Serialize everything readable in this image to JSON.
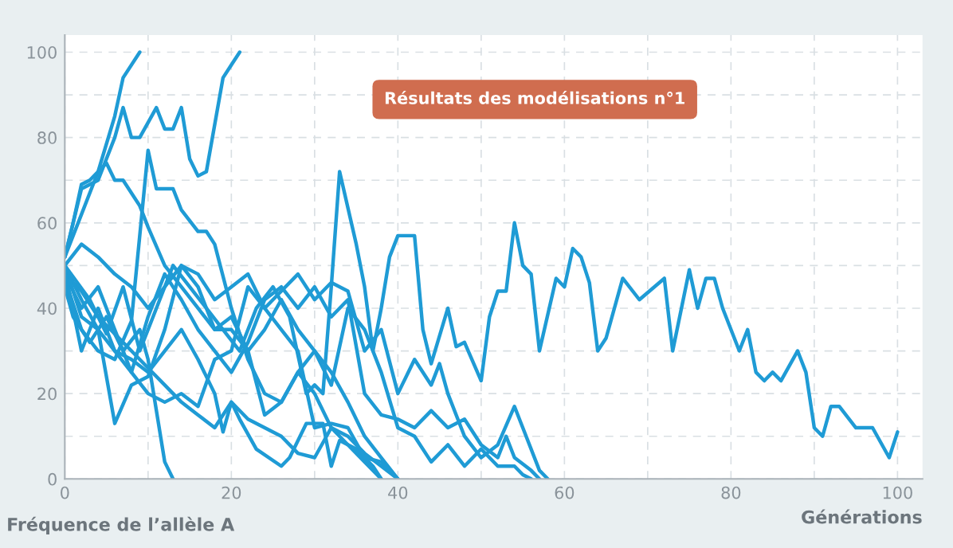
{
  "chart_data": {
    "type": "line",
    "xlabel": "Générations",
    "ylabel": "Fréquence de l’allèle A",
    "annotations": [
      "Résultats des modélisations n°1"
    ],
    "xlim": [
      0,
      103
    ],
    "ylim": [
      0,
      104
    ],
    "xticks": [
      0,
      {
        "value": 10,
        "label": null
      },
      20,
      {
        "value": 30,
        "label": null
      },
      40,
      {
        "value": 50,
        "label": null
      },
      60,
      {
        "value": 70,
        "label": null
      },
      80,
      {
        "value": 90,
        "label": null
      },
      100
    ],
    "yticks": [
      0,
      {
        "value": 10,
        "label": null
      },
      20,
      {
        "value": 30,
        "label": null
      },
      40,
      {
        "value": 50,
        "label": null
      },
      60,
      {
        "value": 70,
        "label": null
      },
      80,
      {
        "value": 90,
        "label": null
      },
      100
    ],
    "grid": true,
    "marker": "none",
    "line_style": "solid",
    "series": [
      {
        "color": "#1f9bd5",
        "x": [
          0,
          2,
          4,
          6,
          7,
          9
        ],
        "values": [
          52,
          62,
          72,
          85,
          94,
          100
        ]
      },
      {
        "color": "#1f9bd5",
        "x": [
          0,
          2,
          4,
          6,
          7,
          8,
          9,
          11,
          12,
          13,
          14,
          15,
          16,
          17,
          19,
          20,
          21
        ],
        "values": [
          52,
          68,
          70,
          80,
          87,
          80,
          80,
          87,
          82,
          82,
          87,
          75,
          71,
          72,
          94,
          97,
          100
        ]
      },
      {
        "color": "#1f9bd5",
        "x": [
          0,
          2,
          4,
          6,
          8,
          10,
          11,
          13,
          14,
          16,
          17,
          18,
          20,
          22,
          24,
          26,
          28,
          30,
          32,
          34,
          36,
          38
        ],
        "values": [
          47,
          35,
          30,
          28,
          37,
          77,
          68,
          68,
          63,
          58,
          58,
          55,
          40,
          28,
          20,
          18,
          25,
          20,
          12,
          8,
          4,
          0
        ]
      },
      {
        "color": "#1f9bd5",
        "x": [
          0,
          1,
          2,
          3,
          5,
          6,
          7,
          9,
          10,
          12,
          14,
          16,
          18,
          20,
          22,
          24,
          26,
          28,
          30,
          32,
          34,
          36,
          38,
          40
        ],
        "values": [
          52,
          60,
          69,
          70,
          74,
          70,
          70,
          64,
          59,
          50,
          45,
          40,
          35,
          38,
          30,
          35,
          42,
          35,
          30,
          25,
          18,
          10,
          5,
          0
        ]
      },
      {
        "color": "#1f9bd5",
        "x": [
          0,
          1,
          3,
          5,
          7,
          9,
          10,
          11,
          12,
          13
        ],
        "values": [
          45,
          38,
          32,
          38,
          30,
          35,
          28,
          16,
          4,
          0
        ]
      },
      {
        "color": "#1f9bd5",
        "x": [
          0,
          2,
          4,
          6,
          8,
          10,
          12,
          14,
          16,
          18,
          19,
          20,
          21,
          23,
          26,
          27,
          29,
          31,
          32,
          33,
          35,
          37,
          38
        ],
        "values": [
          50,
          42,
          35,
          30,
          28,
          25,
          30,
          35,
          28,
          20,
          11,
          18,
          14,
          7,
          3,
          5,
          13,
          13,
          3,
          9,
          7,
          3,
          0
        ]
      },
      {
        "color": "#1f9bd5",
        "x": [
          0,
          2,
          4,
          6,
          8,
          10,
          12,
          14,
          16,
          18,
          20,
          22,
          24,
          26,
          28,
          30,
          32,
          34,
          36,
          38,
          40
        ],
        "values": [
          48,
          44,
          38,
          34,
          30,
          26,
          22,
          18,
          15,
          12,
          18,
          14,
          12,
          10,
          6,
          5,
          12,
          10,
          6,
          3,
          0
        ]
      },
      {
        "color": "#1f9bd5",
        "x": [
          0,
          3,
          5,
          7,
          9,
          11,
          13,
          15,
          17,
          19,
          21,
          23,
          25,
          27,
          29,
          30,
          31,
          32,
          33,
          35,
          36,
          37,
          38,
          39,
          40,
          42,
          43,
          44,
          46,
          47,
          48,
          50,
          51,
          52,
          53,
          54,
          55,
          56,
          57,
          59,
          60,
          61,
          62,
          63,
          64,
          65,
          67,
          69,
          72,
          73,
          75,
          76,
          77,
          78,
          79,
          81,
          82,
          83,
          84,
          85,
          86,
          88,
          89,
          90,
          91,
          92,
          93,
          95,
          97,
          99,
          100
        ],
        "values": [
          50,
          42,
          34,
          45,
          30,
          40,
          50,
          45,
          40,
          35,
          30,
          40,
          45,
          38,
          20,
          22,
          20,
          45,
          72,
          55,
          45,
          30,
          40,
          52,
          57,
          57,
          35,
          27,
          40,
          31,
          32,
          23,
          38,
          44,
          44,
          60,
          50,
          48,
          30,
          47,
          45,
          54,
          52,
          46,
          30,
          33,
          47,
          42,
          47,
          30,
          49,
          40,
          47,
          47,
          40,
          30,
          35,
          25,
          23,
          25,
          23,
          30,
          25,
          12,
          10,
          17,
          17,
          12,
          12,
          5,
          11
        ]
      },
      {
        "color": "#1f9bd5",
        "x": [
          0,
          2,
          4,
          6,
          8,
          10,
          12,
          14,
          16,
          18,
          20,
          22,
          24,
          26,
          28,
          30,
          32,
          34,
          36,
          38,
          40,
          42,
          44,
          45,
          46,
          48,
          50,
          52,
          54,
          55,
          57,
          58
        ],
        "values": [
          50,
          55,
          52,
          48,
          45,
          40,
          45,
          50,
          48,
          42,
          45,
          48,
          40,
          44,
          48,
          42,
          46,
          44,
          30,
          35,
          20,
          28,
          22,
          27,
          20,
          10,
          5,
          8,
          17,
          12,
          2,
          0
        ]
      },
      {
        "color": "#1f9bd5",
        "x": [
          0,
          2,
          4,
          6,
          8,
          10,
          12,
          14,
          16,
          18,
          20,
          22,
          24,
          26,
          28,
          30,
          32,
          34,
          36,
          38,
          40,
          42,
          44,
          46,
          48,
          50,
          52,
          53,
          54,
          56,
          57
        ],
        "values": [
          48,
          40,
          45,
          35,
          25,
          38,
          48,
          42,
          35,
          30,
          25,
          32,
          42,
          45,
          40,
          45,
          38,
          42,
          20,
          15,
          14,
          12,
          16,
          12,
          14,
          8,
          5,
          10,
          5,
          2,
          0
        ]
      },
      {
        "color": "#1f9bd5",
        "x": [
          0,
          2,
          4,
          6,
          8,
          10,
          12,
          14,
          16,
          18,
          20,
          22,
          24,
          26,
          28,
          30,
          32,
          34,
          36,
          38,
          40,
          42,
          44,
          46,
          48,
          50,
          52,
          54,
          55,
          56
        ],
        "values": [
          50,
          38,
          35,
          13,
          22,
          24,
          35,
          50,
          45,
          35,
          35,
          30,
          15,
          18,
          25,
          30,
          22,
          40,
          35,
          25,
          12,
          10,
          4,
          8,
          3,
          7,
          3,
          3,
          1,
          0
        ]
      },
      {
        "color": "#1f9bd5",
        "x": [
          0,
          2,
          4,
          6,
          8,
          10,
          12,
          14,
          16,
          18,
          20,
          22,
          24,
          26,
          28,
          30,
          32,
          34,
          36,
          38,
          39,
          40
        ],
        "values": [
          49,
          30,
          40,
          30,
          25,
          20,
          18,
          20,
          17,
          28,
          30,
          45,
          40,
          35,
          30,
          12,
          13,
          12,
          5,
          4,
          2,
          0
        ]
      }
    ]
  }
}
